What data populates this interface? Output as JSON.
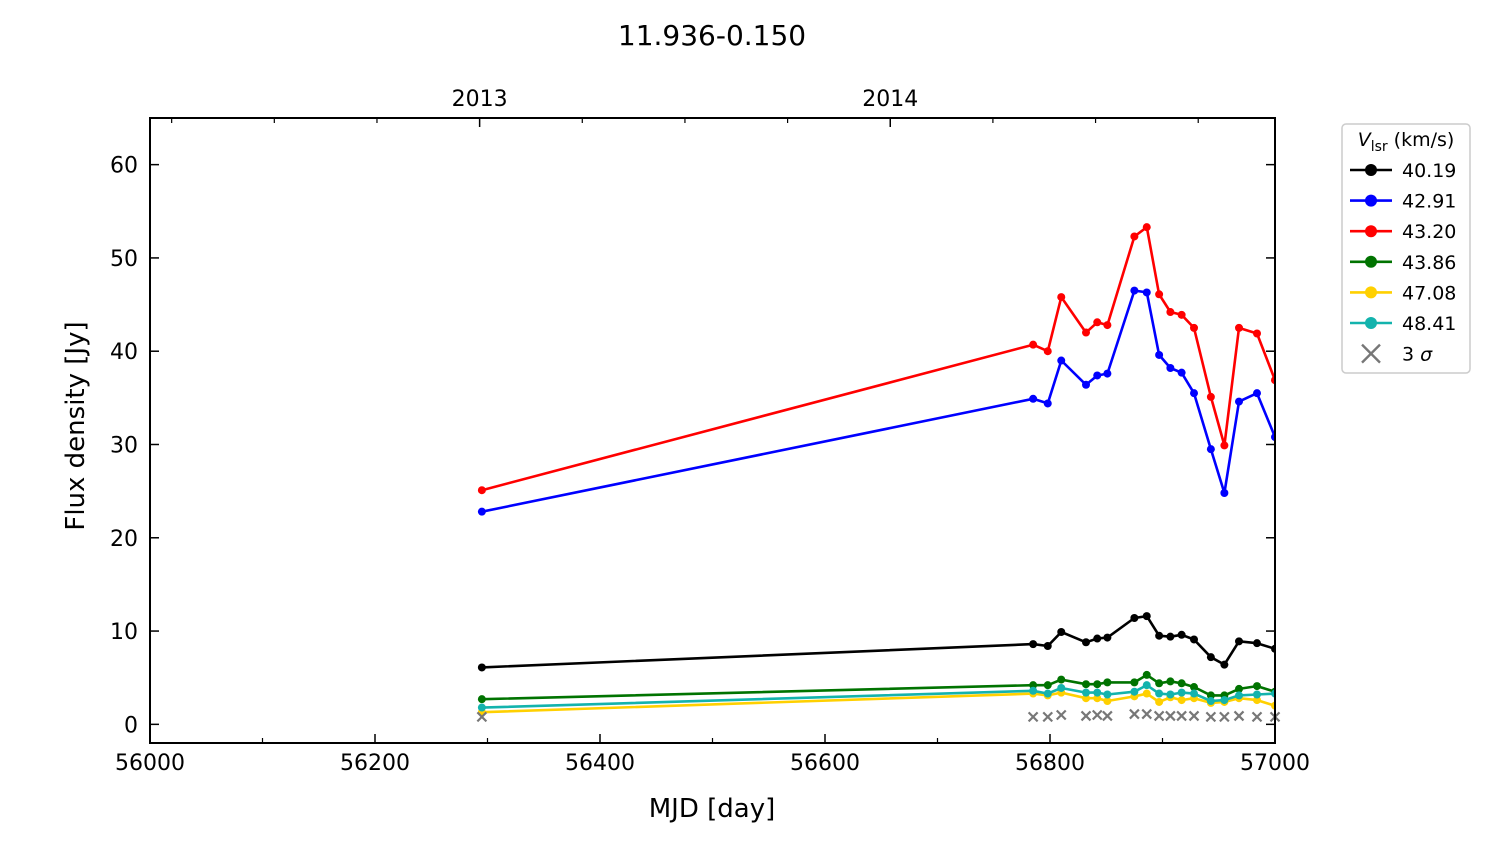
{
  "chart_data": {
    "type": "line",
    "title": "11.936-0.150",
    "xlabel": "MJD [day]",
    "ylabel": "Flux density [Jy]",
    "xlim": [
      56000,
      57000
    ],
    "ylim": [
      -2,
      65
    ],
    "x_ticks": [
      56000,
      56200,
      56400,
      56600,
      56800,
      57000
    ],
    "y_ticks": [
      0,
      10,
      20,
      30,
      40,
      50,
      60
    ],
    "top_axis": {
      "ticks": [
        {
          "label": "2013",
          "x": 56293
        },
        {
          "label": "2014",
          "x": 56658
        }
      ]
    },
    "legend": {
      "title_main": "V",
      "title_sub": "lsr",
      "title_unit": "(km/s)",
      "position": "top-right outside"
    },
    "x": [
      56295,
      56785,
      56798,
      56810,
      56832,
      56842,
      56851,
      56875,
      56886,
      56897,
      56907,
      56917,
      56928,
      56943,
      56955,
      56968,
      56984,
      57000
    ],
    "series": [
      {
        "name": "40.19",
        "color": "#000000",
        "values": [
          6.1,
          8.6,
          8.4,
          9.9,
          8.8,
          9.2,
          9.3,
          11.4,
          11.6,
          9.5,
          9.4,
          9.6,
          9.1,
          7.2,
          6.4,
          8.9,
          8.7,
          8.1
        ]
      },
      {
        "name": "42.91",
        "color": "#0000ff",
        "values": [
          22.8,
          34.9,
          34.4,
          39.0,
          36.4,
          37.4,
          37.6,
          46.5,
          46.3,
          39.6,
          38.2,
          37.7,
          35.5,
          29.5,
          24.8,
          34.6,
          35.5,
          30.8
        ]
      },
      {
        "name": "43.20",
        "color": "#ff0000",
        "values": [
          25.1,
          40.7,
          40.0,
          45.8,
          42.0,
          43.1,
          42.8,
          52.3,
          53.3,
          46.1,
          44.2,
          43.9,
          42.5,
          35.1,
          29.9,
          42.5,
          41.9,
          36.9
        ]
      },
      {
        "name": "43.86",
        "color": "#007300",
        "values": [
          2.7,
          4.2,
          4.2,
          4.8,
          4.3,
          4.3,
          4.5,
          4.5,
          5.3,
          4.4,
          4.6,
          4.4,
          4.0,
          3.1,
          3.1,
          3.8,
          4.1,
          3.5
        ]
      },
      {
        "name": "47.08",
        "color": "#ffd000",
        "values": [
          1.3,
          3.3,
          3.1,
          3.4,
          2.8,
          2.8,
          2.5,
          3.0,
          3.3,
          2.4,
          2.9,
          2.6,
          2.8,
          2.3,
          2.4,
          2.8,
          2.6,
          2.0
        ]
      },
      {
        "name": "48.41",
        "color": "#13b3ad",
        "values": [
          1.8,
          3.6,
          3.3,
          3.9,
          3.4,
          3.4,
          3.2,
          3.5,
          4.2,
          3.3,
          3.2,
          3.4,
          3.3,
          2.5,
          2.6,
          3.1,
          3.2,
          3.3
        ]
      }
    ],
    "sigma3": {
      "name": "3 σ",
      "color": "#777777",
      "x": [
        56295,
        56785,
        56798,
        56810,
        56832,
        56842,
        56851,
        56875,
        56886,
        56897,
        56907,
        56917,
        56928,
        56943,
        56955,
        56968,
        56984,
        57000
      ],
      "values": [
        0.8,
        0.8,
        0.8,
        1.0,
        0.9,
        1.0,
        0.9,
        1.1,
        1.1,
        0.9,
        0.9,
        0.9,
        0.9,
        0.8,
        0.8,
        0.9,
        0.8,
        0.8
      ]
    },
    "grid": false
  }
}
